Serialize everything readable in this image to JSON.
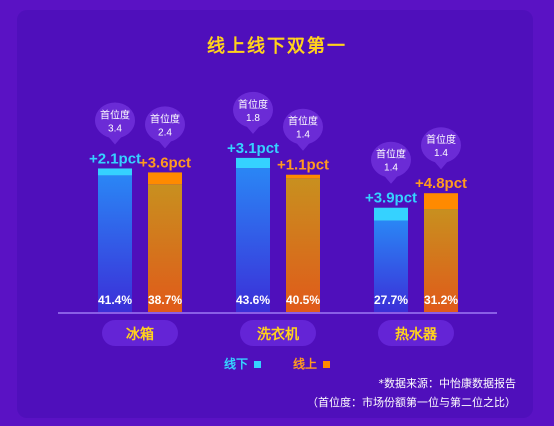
{
  "title": "线上线下双第一",
  "chart_data": {
    "type": "bar",
    "title": "线上线下双第一",
    "categories": [
      "冰箱",
      "洗衣机",
      "热水器"
    ],
    "series": [
      {
        "name": "线下",
        "values": [
          41.4,
          43.6,
          27.7
        ],
        "labels": [
          "41.4%",
          "43.6%",
          "27.7%"
        ],
        "increase_labels": [
          "+2.1pct",
          "+3.1pct",
          "+3.9pct"
        ],
        "increase": [
          2.1,
          3.1,
          3.9
        ],
        "lead_ratio": [
          "3.4",
          "1.8",
          "1.4"
        ],
        "color": "#2a7ef0"
      },
      {
        "name": "线上",
        "values": [
          38.7,
          40.5,
          31.2
        ],
        "labels": [
          "38.7%",
          "40.5%",
          "31.2%"
        ],
        "increase_labels": [
          "+3.6pct",
          "+1.1pct",
          "+4.8pct"
        ],
        "increase": [
          3.6,
          1.1,
          4.8
        ],
        "lead_ratio": [
          "2.4",
          "1.4",
          "1.4"
        ],
        "color": "#f07b0c"
      }
    ],
    "bubble_label": "首位度",
    "legend": "bottom-center",
    "grid": false
  },
  "colors": {
    "background": "#5a12c4",
    "title": "#ffd21c",
    "offline_label": "#35d2ff",
    "online_label": "#ff9a1f"
  },
  "legend": {
    "offline": "线下",
    "online": "线上"
  },
  "source_note": "*数据来源：中怡康数据报告",
  "footnote": "（首位度：市场份额第一位与第二位之比）"
}
